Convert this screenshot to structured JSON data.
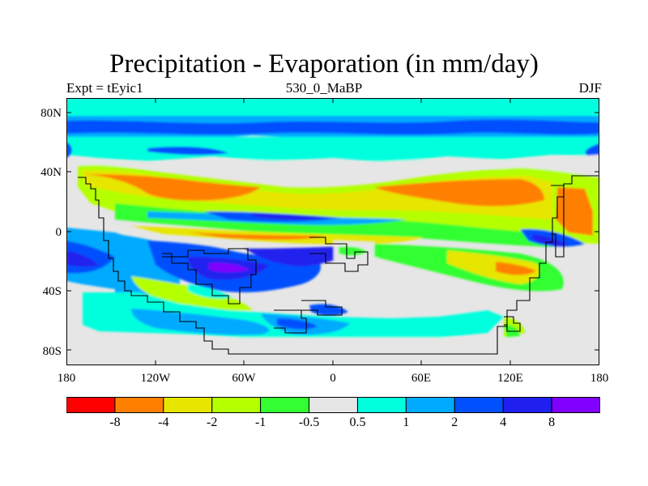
{
  "title": "Precipitation - Evaporation (in mm/day)",
  "subtitle_left": "Expt = tEyic1",
  "subtitle_center": "530_0_MaBP",
  "subtitle_right": "DJF",
  "y_tick_labels": [
    "80N",
    "40N",
    "0",
    "40S",
    "80S"
  ],
  "x_tick_labels": [
    "180",
    "120W",
    "60W",
    "0",
    "60E",
    "120E",
    "180"
  ],
  "colorbar": {
    "labels": [
      "-8",
      "-4",
      "-2",
      "-1",
      "-0.5",
      "0.5",
      "1",
      "2",
      "4",
      "8"
    ],
    "colors": [
      "#ff0000",
      "#ff8000",
      "#e6e600",
      "#b4ff00",
      "#33ff33",
      "#e6e6e6",
      "#00ffdd",
      "#00aaff",
      "#0050ff",
      "#2020ee",
      "#8000ff"
    ]
  },
  "map_colors": {
    "background": "#e6e6e6",
    "outline": "#000000"
  }
}
